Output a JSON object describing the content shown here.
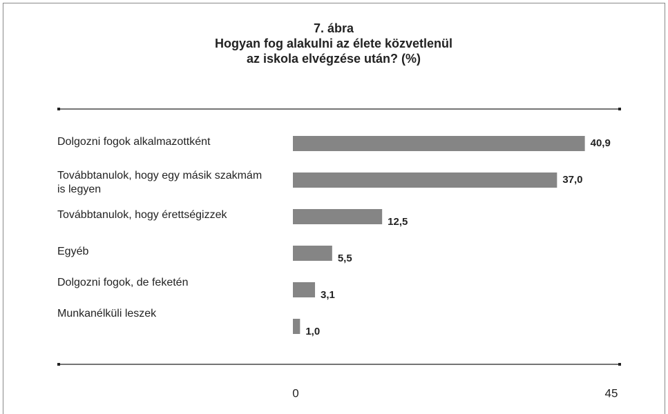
{
  "chart_data": {
    "type": "bar",
    "orientation": "horizontal",
    "title": [
      "7. ábra",
      "Hogyan fog alakulni az élete közvetlenül",
      "az iskola elvégzése után? (%)"
    ],
    "categories": [
      "Dolgozni fogok alkalmazottként",
      "Továbbtanulok, hogy egy másik szakmám is legyen",
      "Továbbtanulok, hogy érettségizzek",
      "Egyéb",
      "Dolgozni fogok, de feketén",
      "Munkanélküli leszek"
    ],
    "values": [
      40.9,
      37.0,
      12.5,
      5.5,
      3.1,
      1.0
    ],
    "value_labels": [
      "40,9",
      "37,0",
      "12,5",
      "5,5",
      "3,1",
      "1,0"
    ],
    "color": "#858585",
    "xlim": [
      0,
      45
    ],
    "xticks": [
      0,
      45
    ]
  }
}
